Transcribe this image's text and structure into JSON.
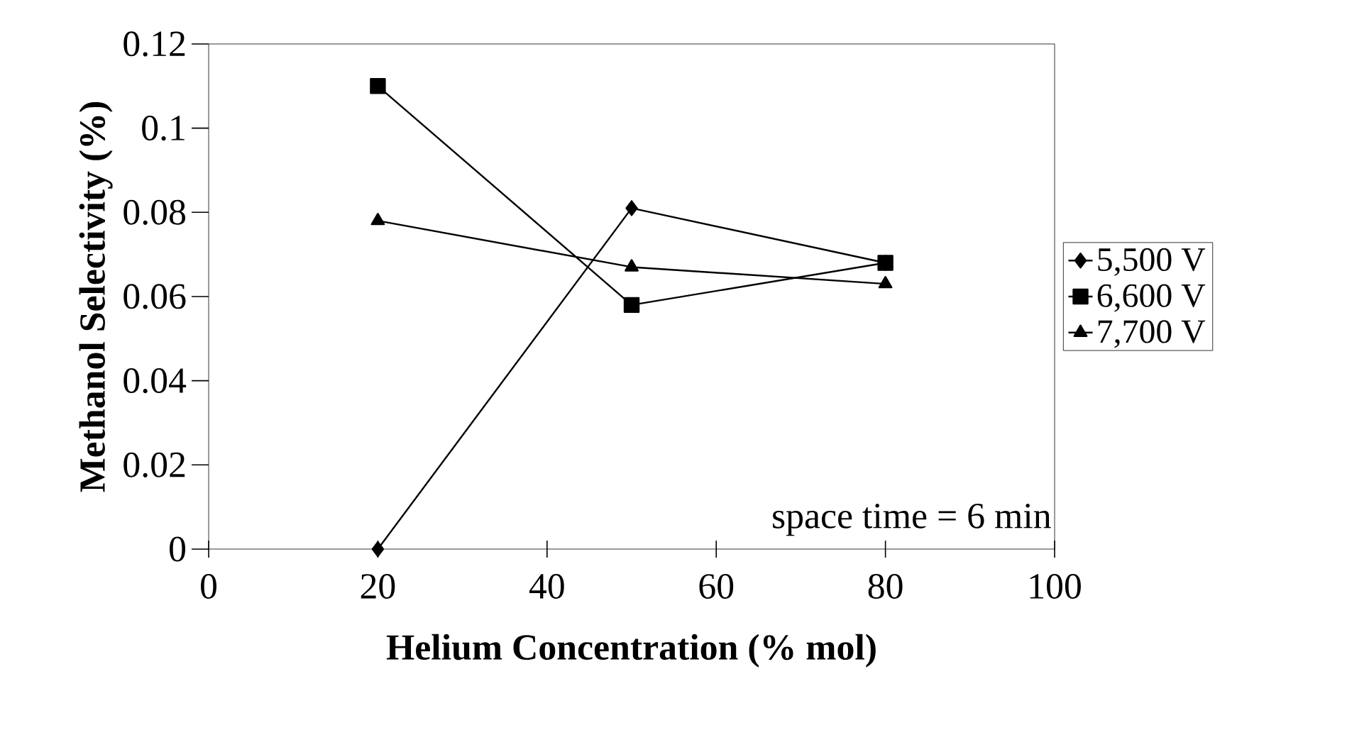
{
  "chart_data": {
    "type": "line",
    "xlabel": "Helium Concentration (% mol)",
    "ylabel": "Methanol Selectivity (%)",
    "x": [
      20,
      50,
      80
    ],
    "series": [
      {
        "name": "5,500 V",
        "color": "#000000",
        "marker": "diamond",
        "values": [
          0,
          0.081,
          0.068
        ]
      },
      {
        "name": "6,600 V",
        "color": "#000000",
        "marker": "square",
        "values": [
          0.11,
          0.058,
          0.068
        ]
      },
      {
        "name": "7,700 V",
        "color": "#000000",
        "marker": "triangle",
        "values": [
          0.078,
          0.067,
          0.063
        ]
      }
    ],
    "xlim": [
      0,
      100
    ],
    "xticks": [
      0,
      20,
      40,
      60,
      80,
      100
    ],
    "ylim": [
      0,
      0.12
    ],
    "yticks": [
      0,
      0.02,
      0.04,
      0.06,
      0.08,
      0.1,
      0.12
    ],
    "annotations": [
      "space time = 6 min"
    ],
    "legend": "right",
    "grid": false,
    "line_style": "solid"
  }
}
